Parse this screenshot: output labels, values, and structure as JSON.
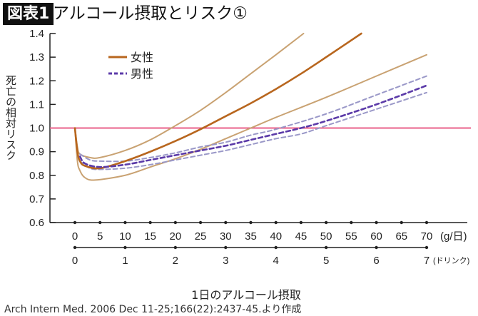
{
  "header": {
    "badge": "図表1",
    "title": "アルコール摂取とリスク①"
  },
  "footer": {
    "citation": "Arch Intern Med. 2006 Dec 11-25;166(22):2437-45.より作成"
  },
  "chart_data": {
    "type": "line",
    "title": "アルコール摂取とリスク①",
    "ylabel": "死亡の相対リスク",
    "xlabel": "1日のアルコール摂取",
    "x_unit": "(g/日)",
    "x2_unit": "(ドリンク)",
    "ylim": [
      0.6,
      1.4
    ],
    "xlim": [
      0,
      70
    ],
    "y_ticks": [
      "0.6",
      "0.7",
      "0.8",
      "0.9",
      "1.0",
      "1.1",
      "1.2",
      "1.3",
      "1.4"
    ],
    "x_ticks": [
      "0",
      "5",
      "10",
      "15",
      "20",
      "25",
      "30",
      "35",
      "40",
      "45",
      "50",
      "55",
      "60",
      "65",
      "70"
    ],
    "x2_ticks": [
      "0",
      "1",
      "2",
      "3",
      "4",
      "5",
      "6",
      "7"
    ],
    "reference_line": {
      "y": 1.0,
      "color": "#e8608a"
    },
    "legend": {
      "position": "top-left",
      "items": [
        {
          "label": "女性",
          "color": "#b8661e",
          "style": "solid"
        },
        {
          "label": "男性",
          "color": "#5b3aa8",
          "style": "dashed"
        }
      ]
    },
    "series": [
      {
        "name": "女性",
        "role": "estimate",
        "color": "#b8661e",
        "style": "solid",
        "x": [
          0,
          0.5,
          1,
          2,
          5,
          10,
          15,
          20,
          25,
          30,
          35,
          40,
          45,
          50,
          57
        ],
        "y": [
          1.0,
          0.9,
          0.86,
          0.84,
          0.83,
          0.86,
          0.9,
          0.945,
          0.995,
          1.05,
          1.105,
          1.165,
          1.23,
          1.3,
          1.4
        ]
      },
      {
        "role": "upper",
        "color": "#c9a272",
        "style": "solid",
        "x": [
          0,
          0.5,
          1,
          3,
          5,
          10,
          15,
          20,
          25,
          30,
          35,
          40,
          45.5
        ],
        "y": [
          1.0,
          0.92,
          0.89,
          0.875,
          0.875,
          0.905,
          0.95,
          1.01,
          1.075,
          1.15,
          1.23,
          1.31,
          1.4
        ]
      },
      {
        "role": "lower",
        "color": "#c9a272",
        "style": "solid",
        "x": [
          0,
          0.5,
          1,
          2,
          4,
          10,
          15,
          20,
          25,
          30,
          35,
          40,
          50,
          60,
          70
        ],
        "y": [
          1.0,
          0.86,
          0.82,
          0.79,
          0.78,
          0.8,
          0.835,
          0.87,
          0.91,
          0.955,
          1.0,
          1.045,
          1.13,
          1.22,
          1.31
        ]
      },
      {
        "name": "男性",
        "role": "estimate",
        "color": "#5b3aa8",
        "style": "dashed",
        "x": [
          1,
          2,
          5,
          10,
          15,
          20,
          25,
          30,
          35,
          40,
          45,
          50,
          60,
          70
        ],
        "y": [
          0.88,
          0.85,
          0.835,
          0.845,
          0.865,
          0.885,
          0.905,
          0.925,
          0.95,
          0.975,
          1.0,
          1.03,
          1.1,
          1.18
        ]
      },
      {
        "role": "upper",
        "color": "#9a98c8",
        "style": "dashed",
        "x": [
          1,
          3,
          5,
          10,
          15,
          20,
          25,
          30,
          35,
          40,
          50,
          60,
          70
        ],
        "y": [
          0.89,
          0.865,
          0.86,
          0.86,
          0.875,
          0.895,
          0.92,
          0.94,
          0.97,
          0.995,
          1.06,
          1.14,
          1.22
        ]
      },
      {
        "role": "lower",
        "color": "#9a98c8",
        "style": "dashed",
        "x": [
          1,
          3,
          5,
          10,
          15,
          20,
          25,
          30,
          35,
          40,
          45,
          50,
          60,
          70
        ],
        "y": [
          0.86,
          0.83,
          0.825,
          0.83,
          0.845,
          0.865,
          0.885,
          0.905,
          0.93,
          0.955,
          0.975,
          1.01,
          1.08,
          1.15
        ]
      }
    ]
  }
}
